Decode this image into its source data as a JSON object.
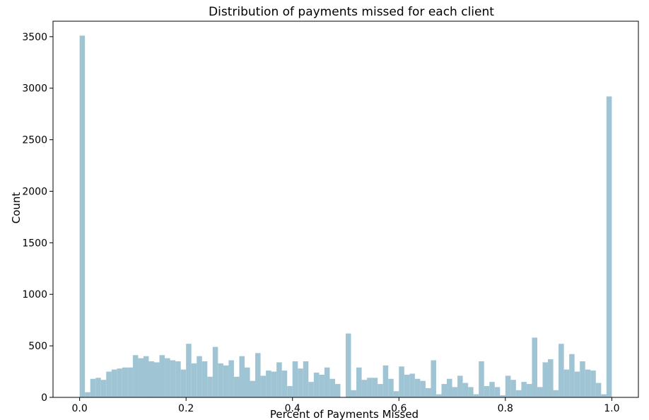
{
  "chart_data": {
    "type": "bar",
    "title": "Distribution of payments missed for each client",
    "xlabel": "Percent of Payments Missed",
    "ylabel": "Count",
    "xlim": [
      -0.05,
      1.05
    ],
    "ylim": [
      0,
      3650
    ],
    "grid": false,
    "bar_color": "#9fc4d3",
    "x_ticks": [
      "0.0",
      "0.2",
      "0.4",
      "0.6",
      "0.8",
      "1.0"
    ],
    "y_ticks": [
      "0",
      "500",
      "1000",
      "1500",
      "2000",
      "2500",
      "3000",
      "3500"
    ],
    "bin_width": 0.01,
    "bins_start": [
      0.0,
      0.01,
      0.02,
      0.03,
      0.04,
      0.05,
      0.06,
      0.07,
      0.08,
      0.09,
      0.1,
      0.11,
      0.12,
      0.13,
      0.14,
      0.15,
      0.16,
      0.17,
      0.18,
      0.19,
      0.2,
      0.21,
      0.22,
      0.23,
      0.24,
      0.25,
      0.26,
      0.27,
      0.28,
      0.29,
      0.3,
      0.31,
      0.32,
      0.33,
      0.34,
      0.35,
      0.36,
      0.37,
      0.38,
      0.39,
      0.4,
      0.41,
      0.42,
      0.43,
      0.44,
      0.45,
      0.46,
      0.47,
      0.48,
      0.49,
      0.5,
      0.51,
      0.52,
      0.53,
      0.54,
      0.55,
      0.56,
      0.57,
      0.58,
      0.59,
      0.6,
      0.61,
      0.62,
      0.63,
      0.64,
      0.65,
      0.66,
      0.67,
      0.68,
      0.69,
      0.7,
      0.71,
      0.72,
      0.73,
      0.74,
      0.75,
      0.76,
      0.77,
      0.78,
      0.79,
      0.8,
      0.81,
      0.82,
      0.83,
      0.84,
      0.85,
      0.86,
      0.87,
      0.88,
      0.89,
      0.9,
      0.91,
      0.92,
      0.93,
      0.94,
      0.95,
      0.96,
      0.97,
      0.98,
      0.99
    ],
    "values": [
      3510,
      50,
      180,
      190,
      170,
      250,
      270,
      280,
      290,
      290,
      410,
      380,
      400,
      350,
      340,
      410,
      380,
      360,
      350,
      270,
      520,
      330,
      400,
      350,
      200,
      490,
      330,
      310,
      360,
      200,
      400,
      290,
      160,
      430,
      210,
      260,
      250,
      340,
      260,
      110,
      350,
      280,
      350,
      150,
      240,
      220,
      290,
      180,
      130,
      0,
      620,
      70,
      290,
      170,
      190,
      190,
      130,
      310,
      180,
      60,
      300,
      220,
      230,
      180,
      160,
      90,
      360,
      30,
      130,
      180,
      100,
      210,
      140,
      100,
      30,
      350,
      110,
      150,
      100,
      20,
      210,
      170,
      70,
      150,
      130,
      580,
      100,
      340,
      370,
      70,
      520,
      270,
      420,
      250,
      350,
      270,
      260,
      140,
      30,
      2920
    ]
  }
}
